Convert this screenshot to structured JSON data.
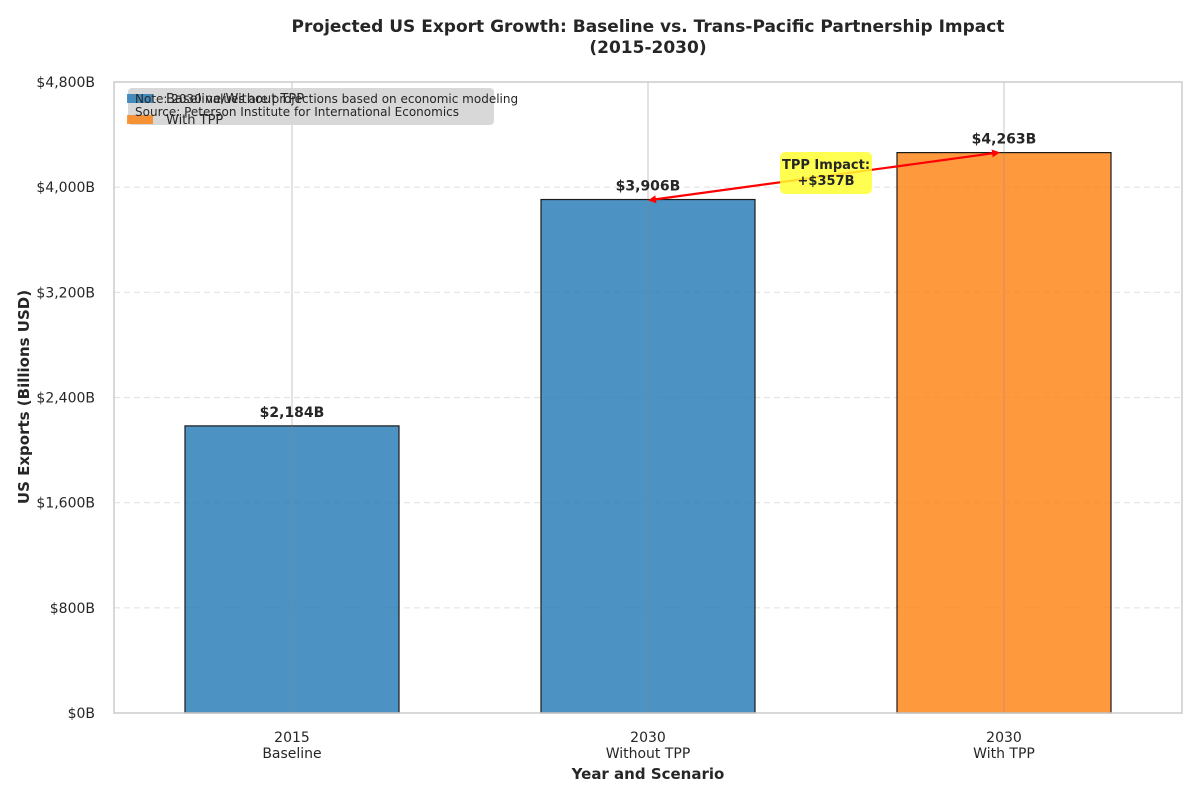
{
  "chart_data": {
    "type": "bar",
    "title_line1": "Projected US Export Growth: Baseline vs. Trans-Pacific Partnership Impact",
    "title_line2": "(2015-2030)",
    "xlabel": "Year and Scenario",
    "ylabel": "US Exports (Billions USD)",
    "ylim": [
      0,
      4800
    ],
    "yticks": [
      0,
      800,
      1600,
      2400,
      3200,
      4000,
      4800
    ],
    "ytick_labels": [
      "$0B",
      "$800B",
      "$1,600B",
      "$2,400B",
      "$3,200B",
      "$4,000B",
      "$4,800B"
    ],
    "categories": [
      {
        "line1": "2015",
        "line2": "Baseline"
      },
      {
        "line1": "2030",
        "line2": "Without TPP"
      },
      {
        "line1": "2030",
        "line2": "With TPP"
      }
    ],
    "values": [
      2184,
      3906,
      4263
    ],
    "value_labels": [
      "$2,184B",
      "$3,906B",
      "$4,263B"
    ],
    "bar_colors": [
      "#1f77b4",
      "#1f77b4",
      "#ff7f0e"
    ],
    "legend": {
      "placement": "upper-left",
      "entries": [
        {
          "label": "Baseline/Without TPP",
          "color": "#1f77b4"
        },
        {
          "label": "With TPP",
          "color": "#ff7f0e"
        }
      ]
    },
    "note_line1": "Note: 2030 values are projections based on economic modeling",
    "note_line2": "Source: Peterson Institute for International Economics",
    "annotation": {
      "line1": "TPP Impact:",
      "line2": "+$357B",
      "arrow_color": "#ff0000",
      "box_color": "#ffff33"
    },
    "grid": "y-dashed"
  }
}
